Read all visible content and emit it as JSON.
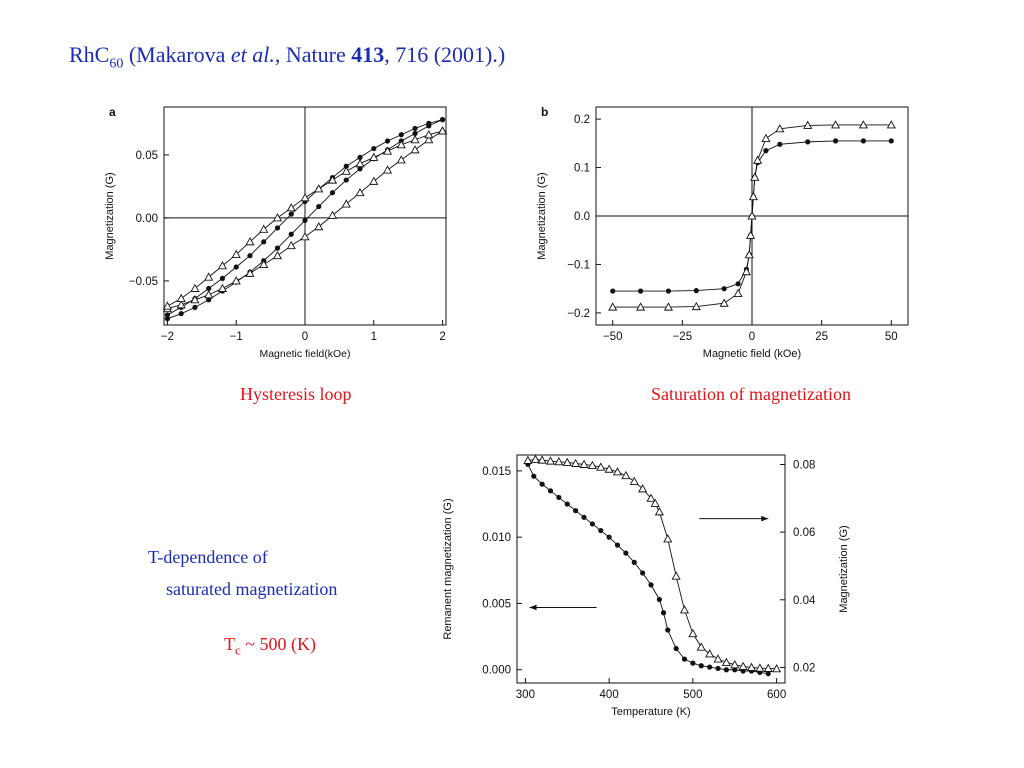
{
  "header": {
    "compound": "RhC",
    "compound_sub": "60",
    "ref_open": "(Makarova ",
    "ref_etal": "et al.",
    "ref_journal": ", Nature ",
    "ref_volume": "413",
    "ref_rest": ", 716 (2001).)"
  },
  "captions": {
    "hysteresis": "Hysteresis loop",
    "saturation": "Saturation of magnetization",
    "tdep_line1": "T-dependence of",
    "tdep_line2": "saturated magnetization",
    "tc_T": "T",
    "tc_sub": "c",
    "tc_rest": " ~ 500 (K)"
  },
  "colors": {
    "title": "#1a2cb8",
    "caption_red": "#e0141a",
    "ink": "#111111"
  },
  "chart_data": [
    {
      "type": "line",
      "panel_label": "a",
      "xlabel": "Magnetic field(kOe)",
      "ylabel": "Magnetization  (G)",
      "xlim": [
        -2.05,
        2.05
      ],
      "ylim": [
        -0.085,
        0.088
      ],
      "xticks": [
        -2,
        -1,
        0,
        1,
        2
      ],
      "xtick_labels": [
        "−2",
        "−1",
        "0",
        "1",
        "2"
      ],
      "yticks": [
        -0.05,
        0,
        0.05
      ],
      "ytick_labels": [
        "−0.05",
        "0.00",
        "0.05"
      ],
      "zero_lines": true,
      "series": [
        {
          "marker": "circle",
          "x": [
            -2,
            -1.8,
            -1.6,
            -1.4,
            -1.2,
            -1.0,
            -0.8,
            -0.6,
            -0.4,
            -0.2,
            0.0,
            0.2,
            0.4,
            0.6,
            0.8,
            1.0,
            1.2,
            1.4,
            1.6,
            1.8,
            2.0
          ],
          "y": [
            -0.08,
            -0.076,
            -0.071,
            -0.065,
            -0.058,
            -0.051,
            -0.043,
            -0.034,
            -0.024,
            -0.013,
            -0.002,
            0.009,
            0.02,
            0.03,
            0.039,
            0.047,
            0.054,
            0.061,
            0.067,
            0.073,
            0.078
          ]
        },
        {
          "marker": "circle",
          "x": [
            2.0,
            1.8,
            1.6,
            1.4,
            1.2,
            1.0,
            0.8,
            0.6,
            0.4,
            0.2,
            0.0,
            -0.2,
            -0.4,
            -0.6,
            -0.8,
            -1.0,
            -1.2,
            -1.4,
            -1.6,
            -1.8,
            -2.0
          ],
          "y": [
            0.078,
            0.075,
            0.071,
            0.066,
            0.061,
            0.055,
            0.048,
            0.041,
            0.032,
            0.023,
            0.013,
            0.003,
            -0.008,
            -0.019,
            -0.03,
            -0.039,
            -0.048,
            -0.056,
            -0.064,
            -0.071,
            -0.077
          ]
        },
        {
          "marker": "triangle",
          "x": [
            -2,
            -1.8,
            -1.6,
            -1.4,
            -1.2,
            -1.0,
            -0.8,
            -0.6,
            -0.4,
            -0.2,
            0.0,
            0.2,
            0.4,
            0.6,
            0.8,
            1.0,
            1.2,
            1.4,
            1.6,
            1.8,
            2.0
          ],
          "y": [
            -0.072,
            -0.069,
            -0.065,
            -0.061,
            -0.056,
            -0.05,
            -0.044,
            -0.037,
            -0.03,
            -0.022,
            -0.015,
            -0.007,
            0.002,
            0.011,
            0.02,
            0.029,
            0.038,
            0.046,
            0.054,
            0.062,
            0.069
          ]
        },
        {
          "marker": "triangle",
          "x": [
            2.0,
            1.8,
            1.6,
            1.4,
            1.2,
            1.0,
            0.8,
            0.6,
            0.4,
            0.2,
            0.0,
            -0.2,
            -0.4,
            -0.6,
            -0.8,
            -1.0,
            -1.2,
            -1.4,
            -1.6,
            -1.8,
            -2.0
          ],
          "y": [
            0.069,
            0.066,
            0.062,
            0.058,
            0.053,
            0.048,
            0.043,
            0.037,
            0.03,
            0.023,
            0.016,
            0.008,
            0.0,
            -0.009,
            -0.019,
            -0.029,
            -0.038,
            -0.047,
            -0.056,
            -0.064,
            -0.07
          ]
        }
      ]
    },
    {
      "type": "line",
      "panel_label": "b",
      "xlabel": "Magnetic field (kOe)",
      "ylabel": "Magnetization (G)",
      "xlim": [
        -56,
        56
      ],
      "ylim": [
        -0.225,
        0.225
      ],
      "xticks": [
        -50,
        -25,
        0,
        25,
        50
      ],
      "xtick_labels": [
        "−50",
        "−25",
        "0",
        "25",
        "50"
      ],
      "yticks": [
        -0.2,
        -0.1,
        0,
        0.1,
        0.2
      ],
      "ytick_labels": [
        "−0.2",
        "−0.1",
        "0.0",
        "0.1",
        "0.2"
      ],
      "zero_lines": true,
      "series": [
        {
          "marker": "circle",
          "x": [
            -50,
            -40,
            -30,
            -20,
            -10,
            -5,
            -2,
            -1,
            -0.5,
            0,
            0.5,
            1,
            2,
            5,
            10,
            20,
            30,
            40,
            50
          ],
          "y": [
            -0.155,
            -0.155,
            -0.155,
            -0.154,
            -0.15,
            -0.14,
            -0.11,
            -0.08,
            -0.04,
            0.0,
            0.04,
            0.08,
            0.11,
            0.135,
            0.148,
            0.153,
            0.155,
            0.155,
            0.155
          ]
        },
        {
          "marker": "triangle",
          "x": [
            -50,
            -40,
            -30,
            -20,
            -10,
            -5,
            -2,
            -1,
            -0.5,
            0,
            0.5,
            1,
            2,
            5,
            10,
            20,
            30,
            40,
            50
          ],
          "y": [
            -0.188,
            -0.188,
            -0.188,
            -0.187,
            -0.18,
            -0.16,
            -0.115,
            -0.08,
            -0.04,
            0.0,
            0.04,
            0.08,
            0.115,
            0.16,
            0.18,
            0.187,
            0.188,
            0.188,
            0.188
          ]
        }
      ]
    },
    {
      "type": "line",
      "xlabel": "Temperature (K)",
      "ylabel_left": "Remanent magnetization (G)",
      "ylabel_right": "Magnetization (G)",
      "xlim": [
        290,
        610
      ],
      "ylim_left": [
        -0.001,
        0.0162
      ],
      "ylim_right": [
        0.0154,
        0.0828
      ],
      "xticks": [
        300,
        400,
        500,
        600
      ],
      "yticks_left": [
        0,
        0.005,
        0.01,
        0.015
      ],
      "ytick_labels_left": [
        "0.000",
        "0.005",
        "0.010",
        "0.015"
      ],
      "yticks_right": [
        0.02,
        0.04,
        0.06,
        0.08
      ],
      "ytick_labels_right": [
        "0.02",
        "0.04",
        "0.06",
        "0.08"
      ],
      "series": [
        {
          "marker": "circle",
          "axis": "left",
          "x": [
            303,
            310,
            320,
            330,
            340,
            350,
            360,
            370,
            380,
            390,
            400,
            410,
            420,
            430,
            440,
            450,
            460,
            465,
            470,
            480,
            490,
            500,
            510,
            520,
            530,
            540,
            550,
            560,
            570,
            580,
            590
          ],
          "y": [
            0.0155,
            0.0146,
            0.014,
            0.0135,
            0.013,
            0.0125,
            0.012,
            0.0115,
            0.011,
            0.0105,
            0.01,
            0.0094,
            0.0088,
            0.0081,
            0.0073,
            0.0064,
            0.0053,
            0.0043,
            0.003,
            0.0016,
            0.0008,
            0.0005,
            0.0003,
            0.0002,
            0.0001,
            0.0,
            0.0,
            -0.0001,
            -0.0001,
            -0.0002,
            -0.0003
          ]
        },
        {
          "marker": "triangle",
          "axis": "right",
          "x": [
            303,
            312,
            320,
            330,
            340,
            350,
            360,
            370,
            380,
            390,
            400,
            410,
            420,
            430,
            440,
            450,
            455,
            460,
            470,
            480,
            490,
            500,
            510,
            520,
            530,
            540,
            550,
            560,
            570,
            580,
            590,
            600
          ],
          "y": [
            0.0812,
            0.0815,
            0.0813,
            0.081,
            0.0808,
            0.0806,
            0.0803,
            0.08,
            0.0797,
            0.0792,
            0.0786,
            0.0778,
            0.0767,
            0.075,
            0.0728,
            0.07,
            0.0685,
            0.066,
            0.058,
            0.047,
            0.037,
            0.03,
            0.026,
            0.024,
            0.0225,
            0.0215,
            0.0208,
            0.0203,
            0.02,
            0.0198,
            0.0197,
            0.0196
          ]
        }
      ],
      "annotations": [
        {
          "type": "arrow",
          "direction": "right",
          "points_to": "right axis"
        },
        {
          "type": "arrow",
          "direction": "left",
          "points_to": "left axis"
        }
      ]
    }
  ]
}
